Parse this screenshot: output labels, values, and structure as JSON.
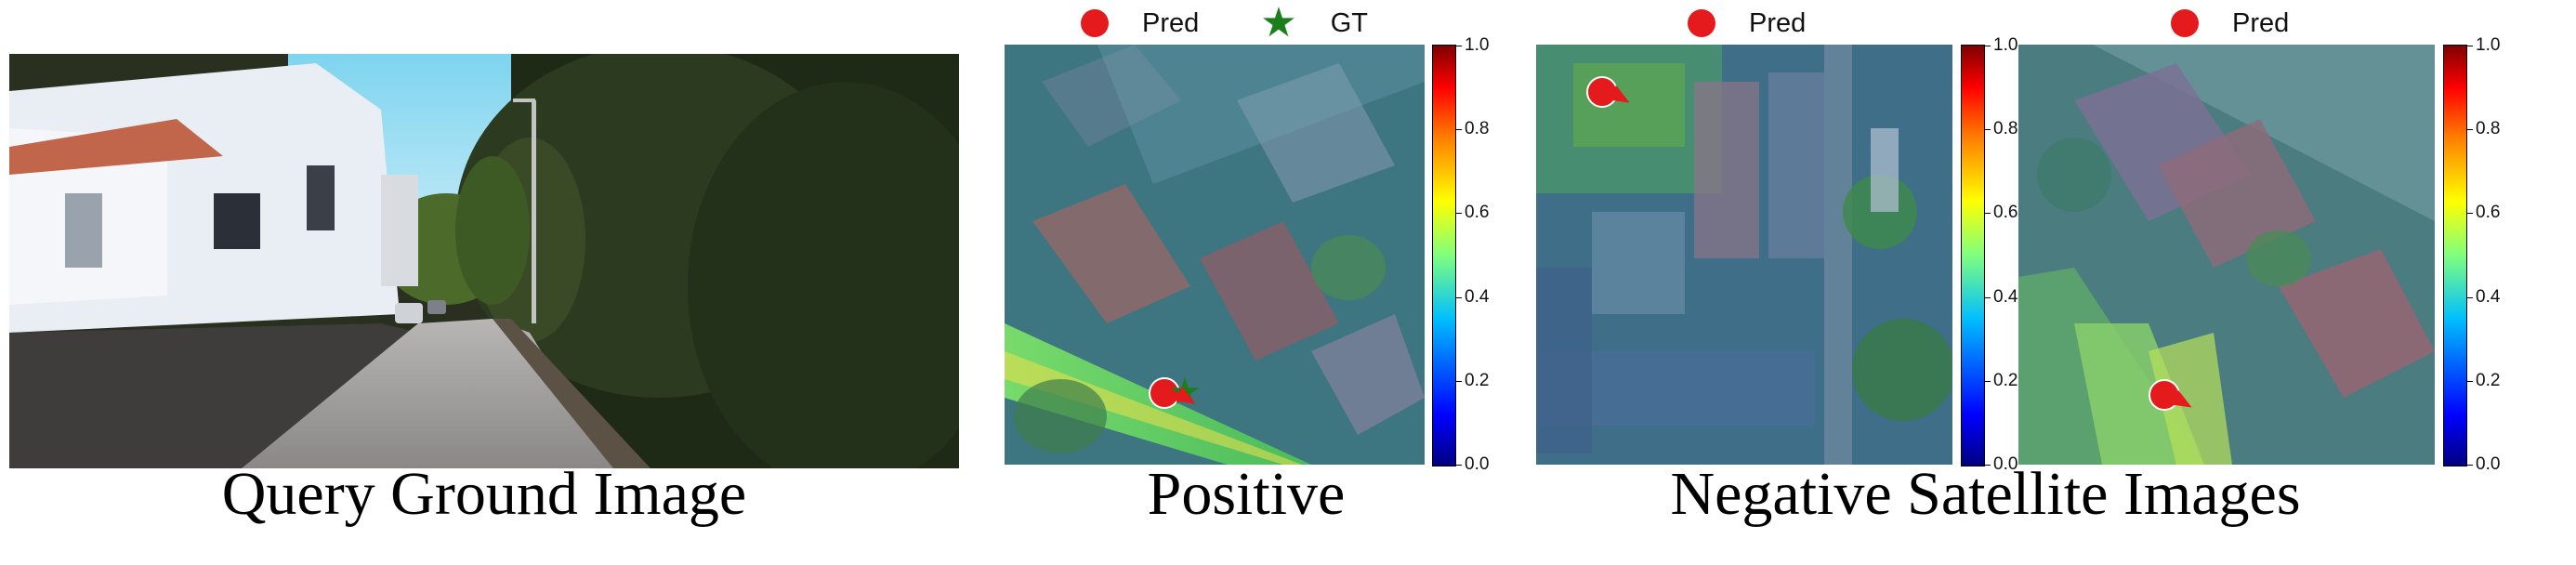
{
  "captions": {
    "query": "Query Ground Image",
    "positive": "Positive",
    "negative": "Negative Satellite Images"
  },
  "legend": {
    "pred": "Pred",
    "gt": "GT"
  },
  "colorbar_ticks": [
    "1.0",
    "0.8",
    "0.6",
    "0.4",
    "0.2",
    "0.0"
  ],
  "icons": {
    "pred_marker": "red-circle-icon",
    "gt_marker": "green-star-icon"
  },
  "colors": {
    "pred": "#e41a1c",
    "gt": "#1a7f1a"
  }
}
